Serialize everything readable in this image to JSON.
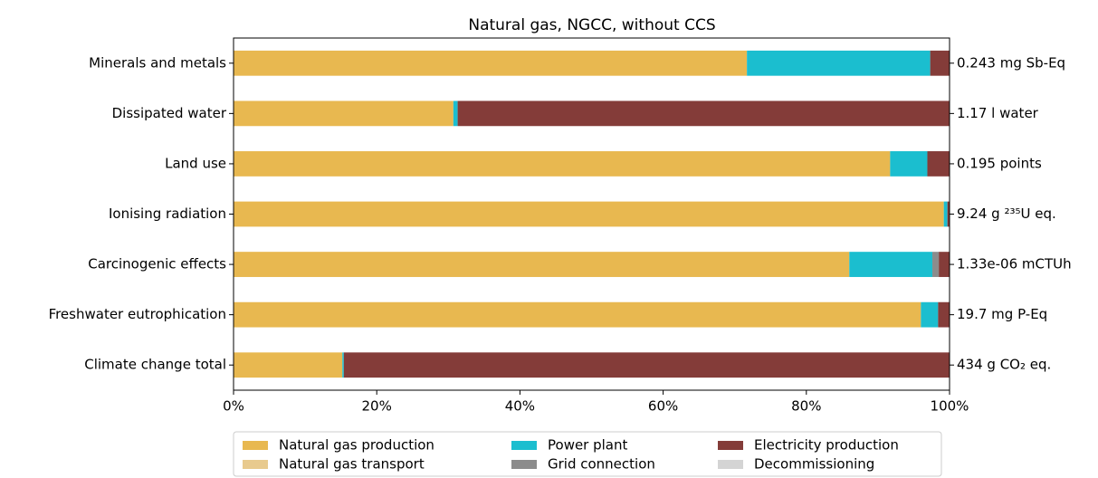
{
  "chart_data": {
    "type": "stacked_barh",
    "title": "Natural gas, NGCC, without CCS",
    "categories": [
      "Minerals and metals",
      "Dissipated water",
      "Land use",
      "Ionising radiation",
      "Carcinogenic effects",
      "Freshwater eutrophication",
      "Climate change total"
    ],
    "right_labels": [
      "0.243 mg Sb-Eq",
      "1.17 l water",
      "0.195 points",
      "9.24 g ²³⁵U eq.",
      "1.33e-06 mCTUh",
      "19.7 mg P-Eq",
      "434 g CO₂ eq."
    ],
    "series": [
      {
        "name": "Natural gas production",
        "color": "#e8b850",
        "values": [
          71.7,
          30.7,
          91.7,
          99.2,
          86.0,
          96.0,
          15.2
        ]
      },
      {
        "name": "Natural gas transport",
        "color": "#e8ca8e",
        "values": [
          0,
          0,
          0,
          0,
          0,
          0,
          0
        ]
      },
      {
        "name": "Power plant",
        "color": "#1bbecf",
        "values": [
          25.6,
          0.6,
          5.2,
          0.5,
          11.6,
          2.4,
          0.2
        ]
      },
      {
        "name": "Grid connection",
        "color": "#8c8c8c",
        "values": [
          0,
          0,
          0,
          0,
          0.9,
          0,
          0
        ]
      },
      {
        "name": "Electricity production",
        "color": "#843c39",
        "values": [
          2.7,
          68.7,
          3.1,
          0.3,
          1.5,
          1.6,
          84.6
        ]
      },
      {
        "name": "Decommissioning",
        "color": "#d4d4d4",
        "values": [
          0,
          0,
          0,
          0,
          0,
          0,
          0
        ]
      }
    ],
    "xlim": [
      0,
      100
    ],
    "xticks": [
      {
        "value": 0,
        "label": "0%"
      },
      {
        "value": 20,
        "label": "20%"
      },
      {
        "value": 40,
        "label": "40%"
      },
      {
        "value": 60,
        "label": "60%"
      },
      {
        "value": 80,
        "label": "80%"
      },
      {
        "value": 100,
        "label": "100%"
      }
    ],
    "legend": "lower center"
  }
}
